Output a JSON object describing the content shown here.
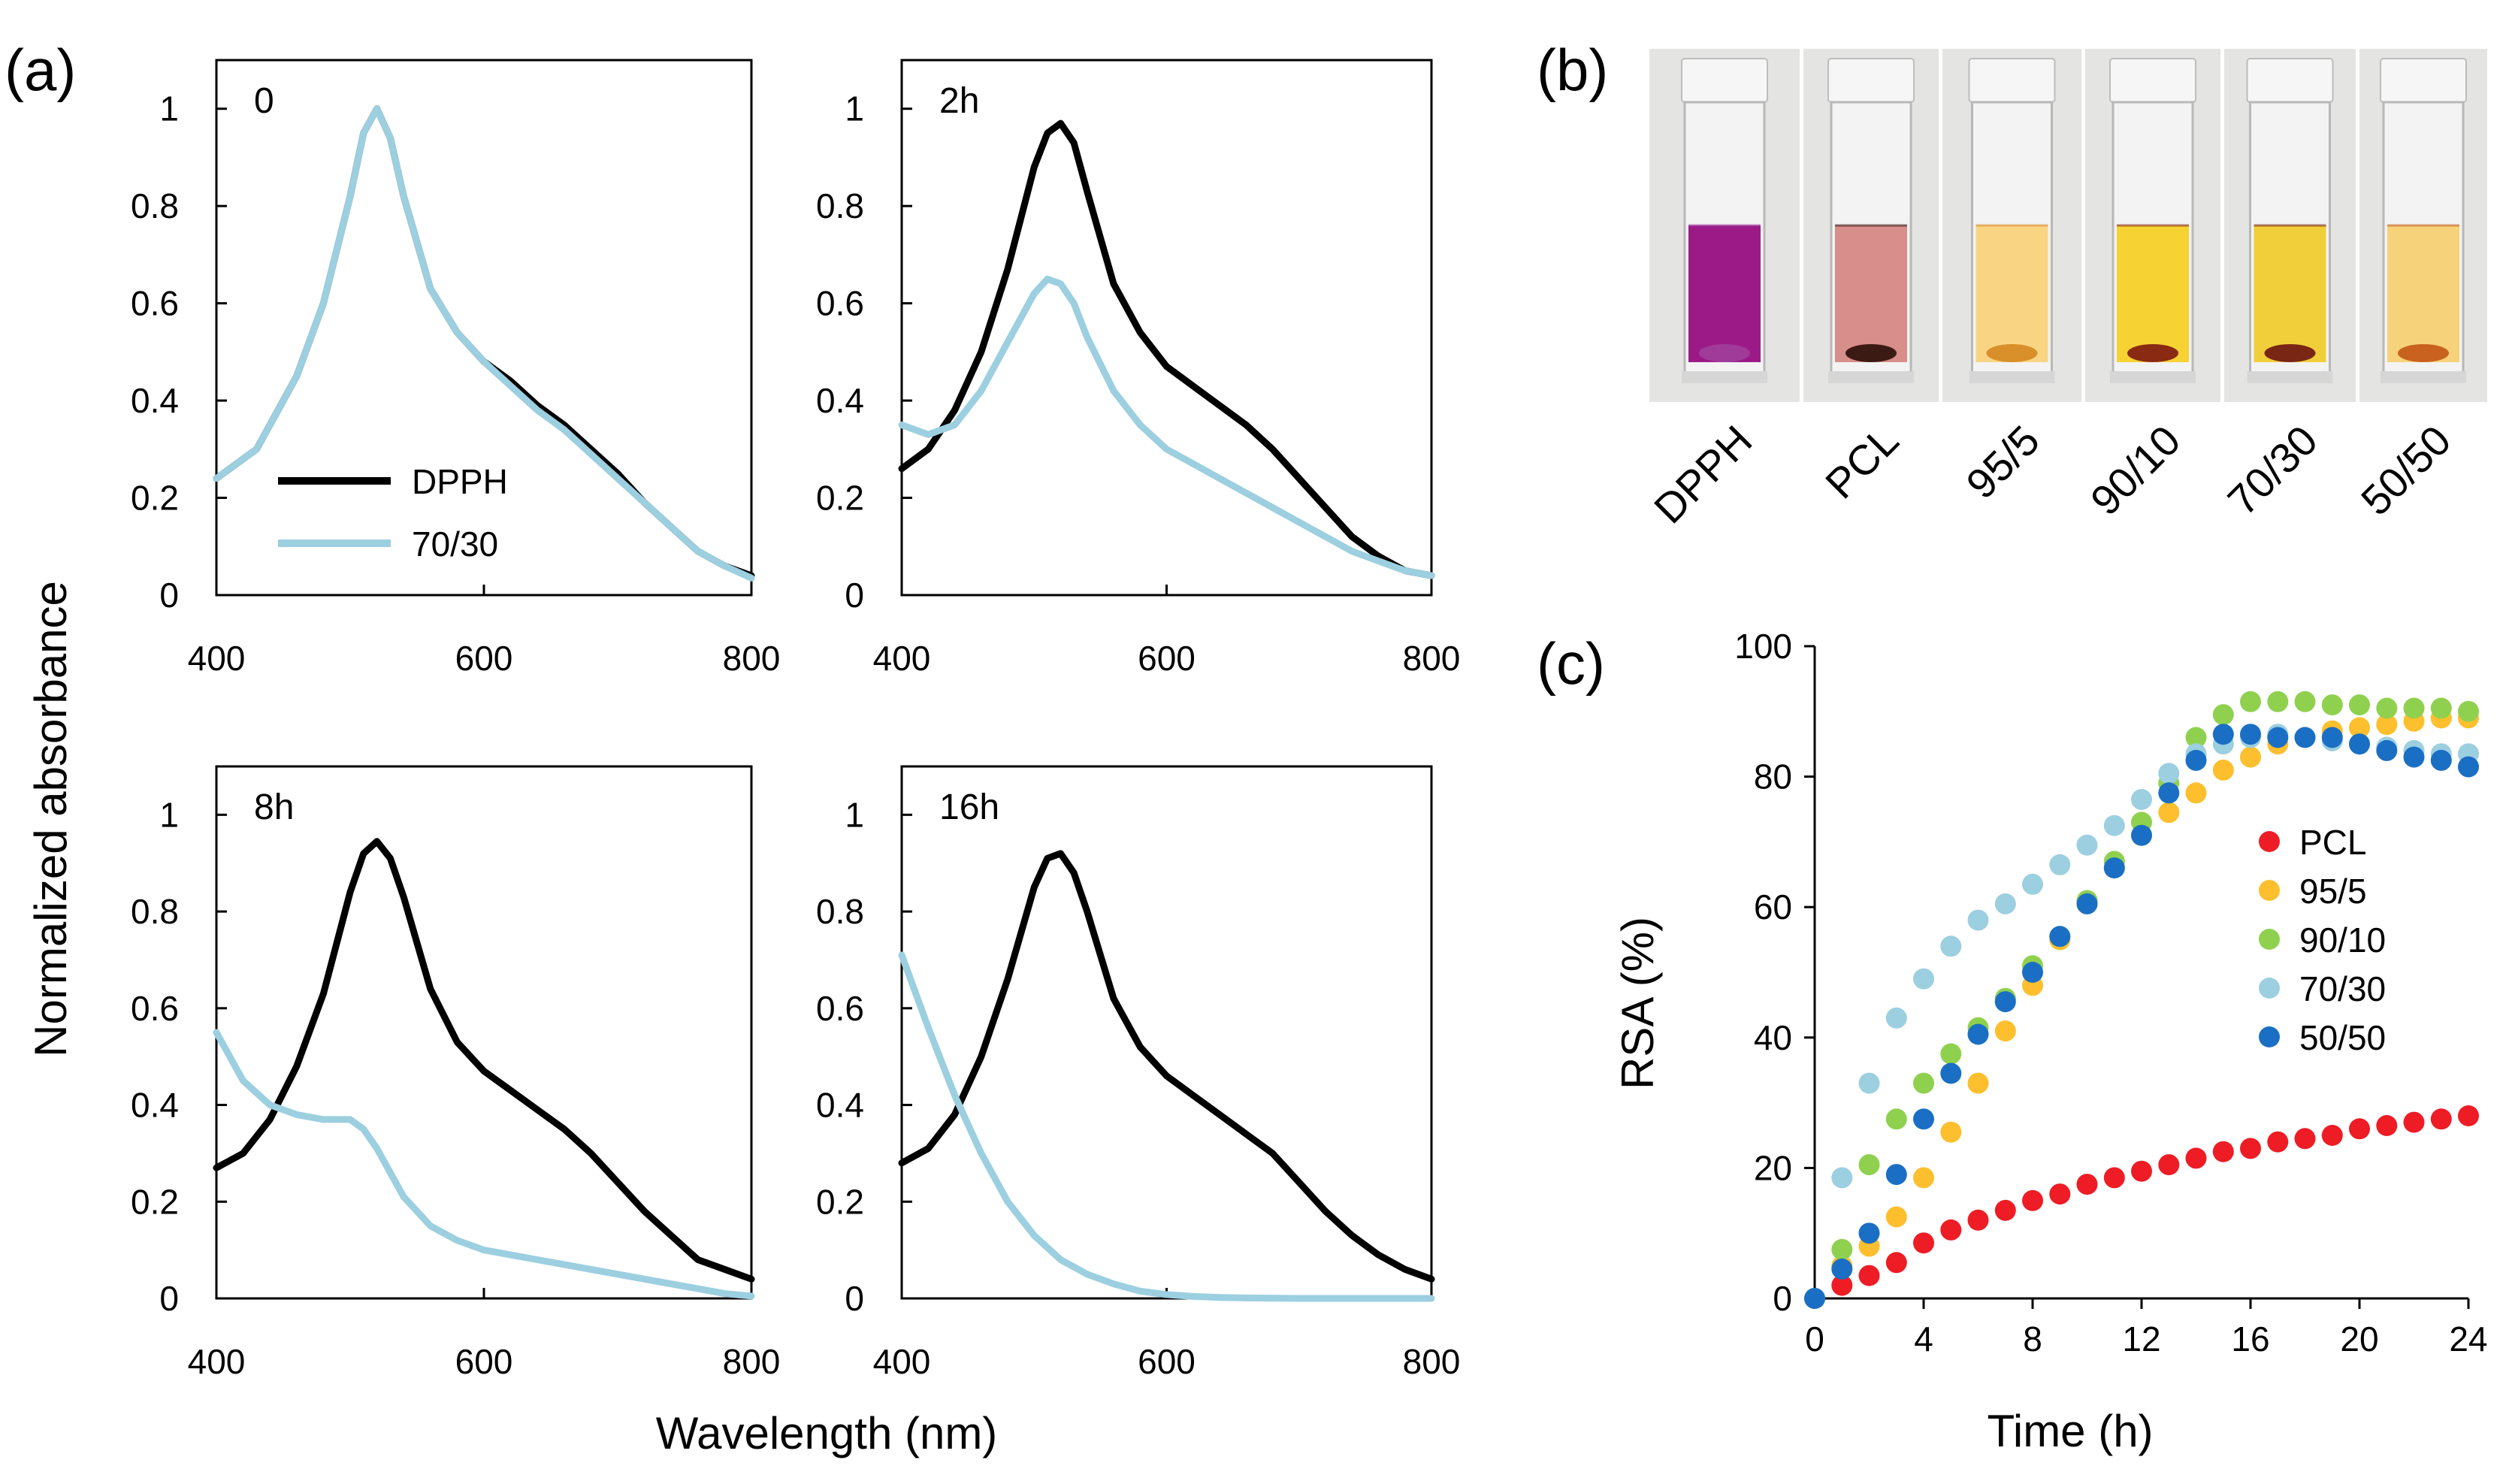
{
  "colors": {
    "dpph_line": "#000000",
    "sample_line": "#9ccfe0",
    "PCL": "#ee1c25",
    "95/5": "#fdbf2d",
    "90/10": "#8fd14f",
    "70/30": "#9ccfe0",
    "50/50": "#1a6fc4"
  },
  "panel_a": {
    "label": "(a)",
    "ylabel": "Normalized absorbance",
    "xlabel": "Wavelength  (nm)",
    "legend": [
      "DPPH",
      "70/30"
    ]
  },
  "panel_b": {
    "label": "(b)",
    "cuvettes": [
      {
        "label": "DPPH",
        "liquid": "#9b1a88",
        "pellet": "#a13b9a"
      },
      {
        "label": "PCL",
        "liquid": "#d88e8b",
        "pellet": "#3c1a14"
      },
      {
        "label": "95/5",
        "liquid": "#f9d583",
        "pellet": "#d98f2a"
      },
      {
        "label": "90/10",
        "liquid": "#f6d233",
        "pellet": "#8a2a12"
      },
      {
        "label": "70/30",
        "liquid": "#f1cf3b",
        "pellet": "#7a2614"
      },
      {
        "label": "50/50",
        "liquid": "#f6d27b",
        "pellet": "#c9621e"
      }
    ]
  },
  "panel_c": {
    "label": "(c)"
  },
  "chart_data": [
    {
      "type": "line",
      "panel": "a",
      "tag": "0",
      "xlim": [
        400,
        800
      ],
      "ylim": [
        0,
        1.1
      ],
      "xticks": [
        400,
        600,
        800
      ],
      "yticks": [
        0,
        0.2,
        0.4,
        0.6,
        0.8,
        1
      ],
      "xlabel": "Wavelength  (nm)",
      "ylabel": "Normalized absorbance",
      "series": [
        {
          "name": "DPPH",
          "x": [
            400,
            430,
            460,
            480,
            500,
            510,
            520,
            530,
            540,
            560,
            580,
            600,
            620,
            640,
            660,
            680,
            700,
            720,
            740,
            760,
            780,
            800
          ],
          "y": [
            0.24,
            0.3,
            0.45,
            0.6,
            0.82,
            0.95,
            1.0,
            0.94,
            0.82,
            0.63,
            0.54,
            0.48,
            0.44,
            0.39,
            0.35,
            0.3,
            0.25,
            0.19,
            0.14,
            0.09,
            0.06,
            0.04
          ]
        },
        {
          "name": "70/30",
          "x": [
            400,
            430,
            460,
            480,
            500,
            510,
            520,
            530,
            540,
            560,
            580,
            600,
            620,
            640,
            660,
            680,
            700,
            720,
            740,
            760,
            780,
            800
          ],
          "y": [
            0.24,
            0.3,
            0.45,
            0.6,
            0.82,
            0.95,
            1.0,
            0.94,
            0.82,
            0.63,
            0.54,
            0.48,
            0.43,
            0.38,
            0.34,
            0.29,
            0.24,
            0.19,
            0.14,
            0.09,
            0.06,
            0.035
          ]
        }
      ]
    },
    {
      "type": "line",
      "panel": "a",
      "tag": "2h",
      "xlim": [
        400,
        800
      ],
      "ylim": [
        0,
        1.1
      ],
      "xticks": [
        400,
        600,
        800
      ],
      "yticks": [
        0,
        0.2,
        0.4,
        0.6,
        0.8,
        1
      ],
      "series": [
        {
          "name": "DPPH",
          "x": [
            400,
            420,
            440,
            460,
            480,
            500,
            510,
            520,
            530,
            540,
            560,
            580,
            600,
            620,
            640,
            660,
            680,
            700,
            720,
            740,
            760,
            780,
            800
          ],
          "y": [
            0.26,
            0.3,
            0.38,
            0.5,
            0.67,
            0.88,
            0.95,
            0.97,
            0.93,
            0.83,
            0.64,
            0.54,
            0.47,
            0.43,
            0.39,
            0.35,
            0.3,
            0.24,
            0.18,
            0.12,
            0.08,
            0.05,
            0.04
          ]
        },
        {
          "name": "70/30",
          "x": [
            400,
            420,
            440,
            460,
            480,
            500,
            510,
            520,
            530,
            540,
            560,
            580,
            600,
            620,
            640,
            660,
            680,
            700,
            720,
            740,
            760,
            780,
            800
          ],
          "y": [
            0.35,
            0.33,
            0.35,
            0.42,
            0.52,
            0.62,
            0.65,
            0.64,
            0.6,
            0.53,
            0.42,
            0.35,
            0.3,
            0.27,
            0.24,
            0.21,
            0.18,
            0.15,
            0.12,
            0.09,
            0.07,
            0.05,
            0.04
          ]
        }
      ]
    },
    {
      "type": "line",
      "panel": "a",
      "tag": "8h",
      "xlim": [
        400,
        800
      ],
      "ylim": [
        0,
        1.1
      ],
      "xticks": [
        400,
        600,
        800
      ],
      "yticks": [
        0,
        0.2,
        0.4,
        0.6,
        0.8,
        1
      ],
      "series": [
        {
          "name": "DPPH",
          "x": [
            400,
            420,
            440,
            460,
            480,
            500,
            510,
            520,
            530,
            540,
            560,
            580,
            600,
            620,
            640,
            660,
            680,
            700,
            720,
            740,
            760,
            780,
            800
          ],
          "y": [
            0.27,
            0.3,
            0.37,
            0.48,
            0.63,
            0.84,
            0.92,
            0.945,
            0.91,
            0.83,
            0.64,
            0.53,
            0.47,
            0.43,
            0.39,
            0.35,
            0.3,
            0.24,
            0.18,
            0.13,
            0.08,
            0.06,
            0.04
          ]
        },
        {
          "name": "70/30",
          "x": [
            400,
            420,
            440,
            460,
            480,
            500,
            510,
            520,
            530,
            540,
            560,
            580,
            600,
            620,
            640,
            660,
            680,
            700,
            720,
            740,
            760,
            780,
            800
          ],
          "y": [
            0.55,
            0.45,
            0.4,
            0.38,
            0.37,
            0.37,
            0.35,
            0.31,
            0.26,
            0.21,
            0.15,
            0.12,
            0.1,
            0.09,
            0.08,
            0.07,
            0.06,
            0.05,
            0.04,
            0.03,
            0.02,
            0.01,
            0.005
          ]
        }
      ]
    },
    {
      "type": "line",
      "panel": "a",
      "tag": "16h",
      "xlim": [
        400,
        800
      ],
      "ylim": [
        0,
        1.1
      ],
      "xticks": [
        400,
        600,
        800
      ],
      "yticks": [
        0,
        0.2,
        0.4,
        0.6,
        0.8,
        1
      ],
      "series": [
        {
          "name": "DPPH",
          "x": [
            400,
            420,
            440,
            460,
            480,
            500,
            510,
            520,
            530,
            540,
            560,
            580,
            600,
            620,
            640,
            660,
            680,
            700,
            720,
            740,
            760,
            780,
            800
          ],
          "y": [
            0.28,
            0.31,
            0.38,
            0.5,
            0.66,
            0.85,
            0.91,
            0.92,
            0.88,
            0.8,
            0.62,
            0.52,
            0.46,
            0.42,
            0.38,
            0.34,
            0.3,
            0.24,
            0.18,
            0.13,
            0.09,
            0.06,
            0.04
          ]
        },
        {
          "name": "70/30",
          "x": [
            400,
            420,
            440,
            460,
            480,
            500,
            520,
            540,
            560,
            580,
            600,
            620,
            640,
            660,
            700,
            740,
            800
          ],
          "y": [
            0.71,
            0.56,
            0.42,
            0.3,
            0.2,
            0.13,
            0.08,
            0.05,
            0.03,
            0.015,
            0.008,
            0.004,
            0.002,
            0.001,
            0,
            0,
            0
          ]
        }
      ]
    },
    {
      "type": "scatter",
      "panel": "c",
      "xlabel": "Time (h)",
      "ylabel": "RSA (%)",
      "xlim": [
        0,
        24
      ],
      "ylim": [
        0,
        100
      ],
      "xticks": [
        0,
        4,
        8,
        12,
        16,
        20,
        24
      ],
      "yticks": [
        0,
        20,
        40,
        60,
        80,
        100
      ],
      "x": [
        0,
        1,
        2,
        3,
        4,
        5,
        6,
        7,
        8,
        9,
        10,
        11,
        12,
        13,
        14,
        15,
        16,
        17,
        18,
        19,
        20,
        21,
        22,
        23,
        24
      ],
      "series": [
        {
          "name": "PCL",
          "values": [
            0,
            2,
            3.5,
            5.5,
            8.5,
            10.5,
            12,
            13.5,
            15,
            16,
            17.5,
            18.5,
            19.5,
            20.5,
            21.5,
            22.5,
            23,
            24,
            24.5,
            25,
            26,
            26.5,
            27,
            27.5,
            28
          ]
        },
        {
          "name": "95/5",
          "values": [
            0,
            5,
            8,
            12.5,
            18.5,
            25.5,
            33,
            41,
            48,
            55,
            60.5,
            66,
            71,
            74.5,
            77.5,
            81,
            83,
            85,
            86,
            87,
            87.5,
            88,
            88.5,
            89,
            89
          ]
        },
        {
          "name": "90/10",
          "values": [
            0,
            7.5,
            20.5,
            27.5,
            33,
            37.5,
            41.5,
            46,
            51,
            55.5,
            61,
            67,
            73,
            79,
            86,
            89.5,
            91.5,
            91.5,
            91.5,
            91,
            91,
            90.5,
            90.5,
            90.5,
            90
          ]
        },
        {
          "name": "70/30",
          "values": [
            0,
            18.5,
            33,
            43,
            49,
            54,
            58,
            60.5,
            63.5,
            66.5,
            69.5,
            72.5,
            76.5,
            80.5,
            83.5,
            85,
            86,
            86.5,
            86,
            85.5,
            85,
            84.5,
            84,
            83.5,
            83.5
          ]
        },
        {
          "name": "50/50",
          "values": [
            0,
            4.5,
            10,
            19,
            27.5,
            34.5,
            40.5,
            45.5,
            50,
            55.5,
            60.5,
            66,
            71,
            77.5,
            82.5,
            86.5,
            86.5,
            86,
            86,
            86,
            85,
            84,
            83,
            82.5,
            81.5
          ]
        }
      ]
    }
  ]
}
